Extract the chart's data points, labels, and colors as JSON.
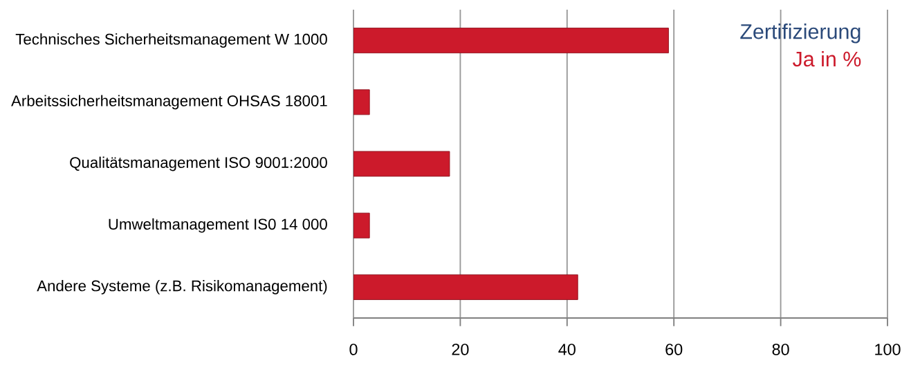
{
  "chart_data": {
    "type": "bar",
    "orientation": "horizontal",
    "legend_title": "Zertifizierung",
    "categories": [
      "Technisches Sicherheitsmanagement W 1000",
      "Arbeitssicherheitsmanagement OHSAS 18001",
      "Qualitätsmanagement ISO 9001:2000",
      "Umweltmanagement IS0 14 000",
      "Andere Systeme (z.B. Risikomanagement)"
    ],
    "series": [
      {
        "name": "Ja in %",
        "color": "#cc1a2b",
        "values": [
          59,
          3,
          18,
          3,
          42
        ]
      }
    ],
    "xlim": [
      0,
      100
    ],
    "xticks": [
      0,
      20,
      40,
      60,
      80,
      100
    ],
    "grid": "x",
    "legend": "top right"
  }
}
